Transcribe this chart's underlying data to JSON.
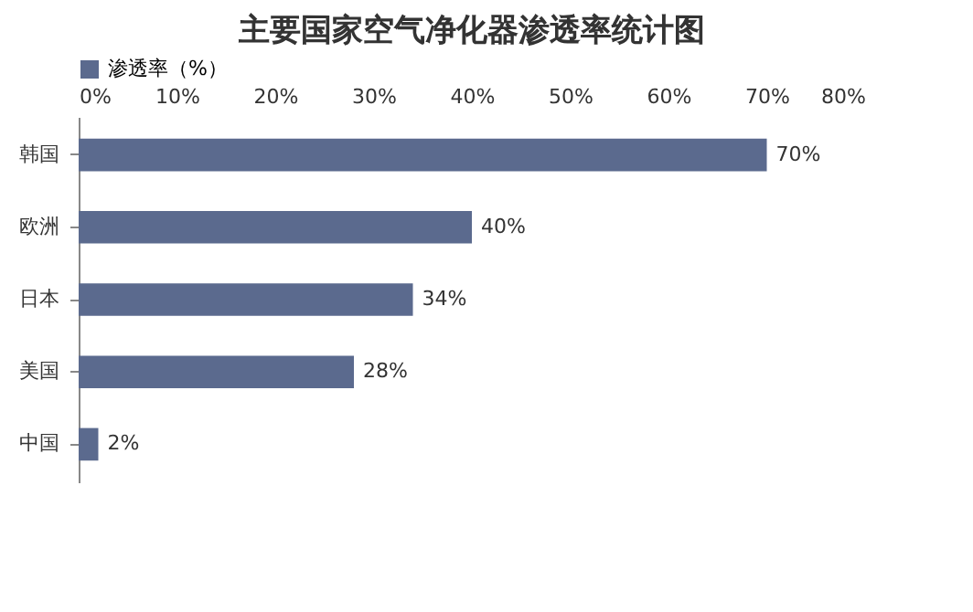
{
  "chart_data": {
    "type": "bar",
    "orientation": "horizontal",
    "title": "主要国家空气净化器渗透率统计图",
    "categories": [
      "韩国",
      "欧洲",
      "日本",
      "美国",
      "中国"
    ],
    "series": [
      {
        "name": "渗透率（%）",
        "color": "#5b6a8e",
        "values": [
          70,
          40,
          34,
          28,
          2
        ],
        "value_labels": [
          "70%",
          "40%",
          "34%",
          "28%",
          "2%"
        ]
      }
    ],
    "xlim": [
      0,
      80
    ],
    "xticks": [
      {
        "value": 0,
        "label": "0%"
      },
      {
        "value": 10,
        "label": "10%"
      },
      {
        "value": 20,
        "label": "20%"
      },
      {
        "value": 30,
        "label": "30%"
      },
      {
        "value": 40,
        "label": "40%"
      },
      {
        "value": 50,
        "label": "50%"
      },
      {
        "value": 60,
        "label": "60%"
      },
      {
        "value": 70,
        "label": "70%"
      },
      {
        "value": 80,
        "label": "80%"
      }
    ],
    "legend": "top",
    "grid": false
  }
}
